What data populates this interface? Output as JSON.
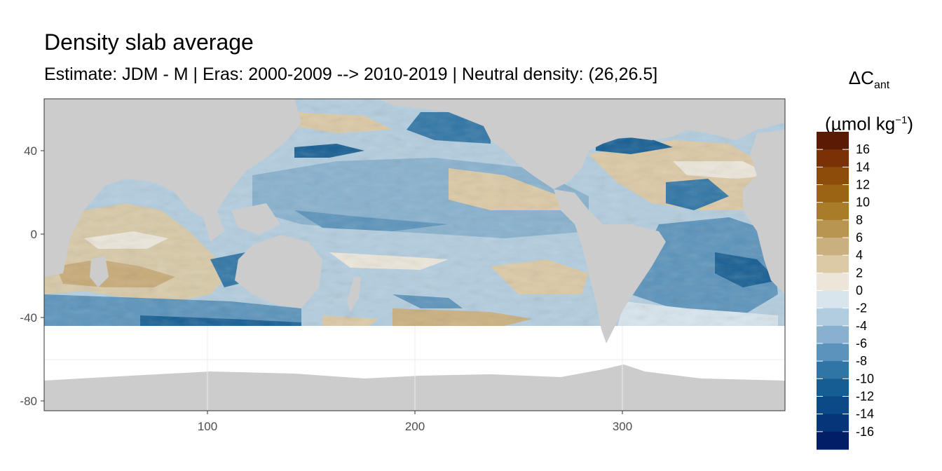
{
  "title": "Density slab average",
  "subtitle": "Estimate: JDM - M | Eras: 2000-2009 --> 2010-2019 | Neutral density: (26,26.5]",
  "legend": {
    "symbol": "ΔC",
    "subscript": "ant",
    "unit_prefix": "(µmol kg",
    "unit_sup": "−1",
    "unit_suffix": ")",
    "labels": [
      "16",
      "14",
      "12",
      "10",
      "8",
      "6",
      "4",
      "2",
      "0",
      "-2",
      "-4",
      "-6",
      "-8",
      "-10",
      "-12",
      "-14",
      "-16"
    ],
    "colors": [
      "#5a1a04",
      "#7a3106",
      "#8e4c0b",
      "#9b6413",
      "#a87c29",
      "#b89652",
      "#cbb07f",
      "#dcc9a5",
      "#ece6da",
      "#d8e5ed",
      "#b2cddf",
      "#87b1ce",
      "#5a93bb",
      "#2f75a5",
      "#155e93",
      "#0b4a86",
      "#06357a",
      "#021e66"
    ]
  },
  "map": {
    "land_color": "#cccccc",
    "nodata_color": "#ffffff",
    "x_ticks": [
      "100",
      "200",
      "300"
    ],
    "y_ticks": [
      "40",
      "0",
      "-40",
      "-80"
    ]
  }
}
